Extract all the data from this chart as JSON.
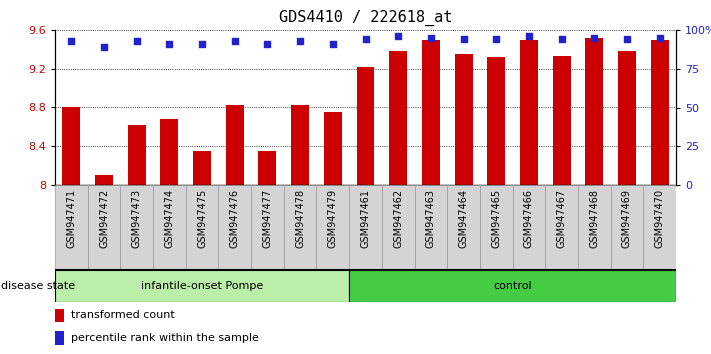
{
  "title": "GDS4410 / 222618_at",
  "samples": [
    "GSM947471",
    "GSM947472",
    "GSM947473",
    "GSM947474",
    "GSM947475",
    "GSM947476",
    "GSM947477",
    "GSM947478",
    "GSM947479",
    "GSM947461",
    "GSM947462",
    "GSM947463",
    "GSM947464",
    "GSM947465",
    "GSM947466",
    "GSM947467",
    "GSM947468",
    "GSM947469",
    "GSM947470"
  ],
  "bar_values": [
    8.8,
    8.1,
    8.62,
    8.68,
    8.35,
    8.83,
    8.35,
    8.83,
    8.75,
    9.22,
    9.38,
    9.5,
    9.35,
    9.32,
    9.5,
    9.33,
    9.52,
    9.38,
    9.5
  ],
  "percentile_values": [
    93,
    89,
    93,
    91,
    91,
    93,
    91,
    93,
    91,
    94,
    96,
    95,
    94,
    94,
    96,
    94,
    95,
    94,
    95
  ],
  "group_labels": [
    "infantile-onset Pompe",
    "control"
  ],
  "group_sizes": [
    9,
    10
  ],
  "ylim_left": [
    8.0,
    9.6
  ],
  "ylim_right": [
    0,
    100
  ],
  "yticks_left": [
    8.0,
    8.4,
    8.8,
    9.2,
    9.6
  ],
  "ytick_labels_left": [
    "8",
    "8.4",
    "8.8",
    "9.2",
    "9.6"
  ],
  "yticks_right": [
    0,
    25,
    50,
    75,
    100
  ],
  "ytick_labels_right": [
    "0",
    "25",
    "50",
    "75",
    "100%"
  ],
  "bar_color": "#CC0000",
  "dot_color": "#2222CC",
  "bar_bottom": 8.0,
  "title_fontsize": 11,
  "tick_fontsize": 7,
  "label_fontsize": 8,
  "disease_state_label": "disease state",
  "legend_bar_label": "transformed count",
  "legend_dot_label": "percentile rank within the sample",
  "group1_color": "#BBEEAA",
  "group2_color": "#44CC44",
  "xtick_bg": "#D4D4D4",
  "xtick_border": "#999999"
}
